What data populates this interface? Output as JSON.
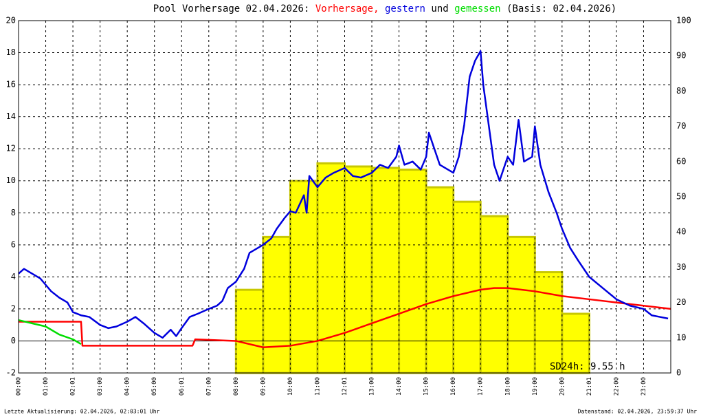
{
  "chart_data": {
    "type": "line",
    "title": "Pool Vorhersage 02.04.2026:",
    "title_joiner": "und",
    "title_suffix": "(Basis: 02.04.2026)",
    "annotation": "SD24h: 9.55 h",
    "footer_left": "Letzte Aktualisierung: 02.04.2026, 02:03:01 Uhr",
    "footer_right": "Datenstand: 02.04.2026, 23:59:37 Uhr",
    "xlim": [
      0,
      24
    ],
    "ylim": [
      -2,
      20
    ],
    "y2lim": [
      0,
      100
    ],
    "grid": true,
    "zero_line": true,
    "xticks": [
      {
        "value": 0,
        "label": "00:00"
      },
      {
        "value": 1,
        "label": "01:00"
      },
      {
        "value": 2,
        "label": "02:01"
      },
      {
        "value": 3,
        "label": "03:00"
      },
      {
        "value": 4,
        "label": "04:00"
      },
      {
        "value": 5,
        "label": "05:00"
      },
      {
        "value": 6,
        "label": "06:01"
      },
      {
        "value": 7,
        "label": "07:00"
      },
      {
        "value": 8,
        "label": "08:00"
      },
      {
        "value": 9,
        "label": "09:00"
      },
      {
        "value": 10,
        "label": "10:00"
      },
      {
        "value": 11,
        "label": "11:00"
      },
      {
        "value": 12,
        "label": "12:01"
      },
      {
        "value": 13,
        "label": "13:00"
      },
      {
        "value": 14,
        "label": "14:00"
      },
      {
        "value": 15,
        "label": "15:00"
      },
      {
        "value": 16,
        "label": "16:00"
      },
      {
        "value": 17,
        "label": "17:00"
      },
      {
        "value": 18,
        "label": "18:00"
      },
      {
        "value": 19,
        "label": "19:00"
      },
      {
        "value": 20,
        "label": "20:00"
      },
      {
        "value": 21,
        "label": "21:01"
      },
      {
        "value": 22,
        "label": "22:00"
      },
      {
        "value": 23,
        "label": "23:00"
      }
    ],
    "yticks": [
      -2,
      0,
      2,
      4,
      6,
      8,
      10,
      12,
      14,
      16,
      18,
      20
    ],
    "y2ticks": [
      0,
      10,
      20,
      30,
      40,
      50,
      60,
      70,
      80,
      90,
      100
    ],
    "bars": {
      "color": "#ffff00",
      "edge": "#c8c800",
      "axis": "y2",
      "x": [
        0,
        1,
        2,
        3,
        4,
        5,
        6,
        7,
        8,
        9,
        10,
        11,
        12,
        13,
        14,
        15,
        16,
        17,
        18,
        19,
        20,
        21,
        22,
        23
      ],
      "values": [
        0,
        0,
        0,
        0,
        0,
        0,
        0,
        0,
        23.6,
        38.6,
        54.5,
        59.5,
        58.6,
        58.2,
        57.7,
        52.7,
        48.6,
        44.5,
        38.6,
        28.6,
        16.8,
        0,
        0,
        0
      ]
    },
    "series": [
      {
        "name": "Vorhersage,",
        "color": "#ff0000",
        "x": [
          0,
          1,
          2.3,
          2.35,
          3,
          5,
          6.4,
          6.5,
          8,
          9,
          10,
          11,
          12,
          13,
          14,
          15,
          16,
          17,
          17.5,
          18,
          19,
          20,
          21,
          22,
          23,
          24
        ],
        "values": [
          1.2,
          1.2,
          1.2,
          -0.3,
          -0.3,
          -0.3,
          -0.3,
          0.1,
          0.0,
          -0.4,
          -0.3,
          0.0,
          0.5,
          1.1,
          1.7,
          2.3,
          2.8,
          3.2,
          3.3,
          3.3,
          3.1,
          2.8,
          2.6,
          2.4,
          2.2,
          2.0
        ]
      },
      {
        "name": "gestern",
        "color": "#0000dd",
        "x": [
          0,
          0.2,
          0.5,
          0.8,
          1,
          1.2,
          1.5,
          1.8,
          2,
          2.3,
          2.6,
          3,
          3.3,
          3.6,
          4,
          4.3,
          4.6,
          5,
          5.3,
          5.6,
          5.8,
          6,
          6.3,
          6.6,
          7,
          7.3,
          7.5,
          7.7,
          8,
          8.3,
          8.5,
          9,
          9.3,
          9.5,
          9.8,
          10,
          10.2,
          10.5,
          10.6,
          10.7,
          11,
          11.3,
          11.6,
          12,
          12.3,
          12.6,
          13,
          13.3,
          13.6,
          13.9,
          14,
          14.2,
          14.5,
          14.8,
          15,
          15.1,
          15.3,
          15.5,
          15.8,
          16,
          16.2,
          16.4,
          16.6,
          16.8,
          17,
          17.1,
          17.3,
          17.5,
          17.7,
          17.9,
          18,
          18.2,
          18.4,
          18.6,
          18.9,
          19,
          19.2,
          19.5,
          19.8,
          20,
          20.3,
          20.6,
          21,
          21.5,
          22,
          22.5,
          23,
          23.3,
          23.6,
          23.9
        ],
        "values": [
          4.2,
          4.5,
          4.2,
          3.9,
          3.5,
          3.1,
          2.7,
          2.4,
          1.8,
          1.6,
          1.5,
          1.0,
          0.8,
          0.9,
          1.2,
          1.5,
          1.1,
          0.5,
          0.2,
          0.7,
          0.3,
          0.8,
          1.5,
          1.7,
          2.0,
          2.2,
          2.5,
          3.3,
          3.7,
          4.5,
          5.5,
          6.0,
          6.4,
          7.0,
          7.7,
          8.1,
          8.0,
          9.1,
          8.0,
          10.3,
          9.6,
          10.2,
          10.5,
          10.8,
          10.3,
          10.2,
          10.5,
          11.0,
          10.8,
          11.5,
          12.2,
          11.0,
          11.2,
          10.7,
          11.5,
          13.0,
          12.0,
          11.0,
          10.7,
          10.5,
          11.5,
          13.5,
          16.5,
          17.5,
          18.1,
          16.0,
          13.5,
          11.0,
          10.0,
          11.0,
          11.5,
          11.0,
          13.8,
          11.2,
          11.5,
          13.4,
          11.0,
          9.3,
          8.0,
          7.0,
          5.8,
          5.0,
          4.0,
          3.3,
          2.6,
          2.2,
          2.0,
          1.6,
          1.5,
          1.4
        ]
      },
      {
        "name": "gemessen",
        "color": "#00dd00",
        "x": [
          0,
          0.5,
          1,
          1.5,
          2,
          2.3
        ],
        "values": [
          1.3,
          1.1,
          0.9,
          0.4,
          0.1,
          -0.2
        ]
      }
    ]
  }
}
